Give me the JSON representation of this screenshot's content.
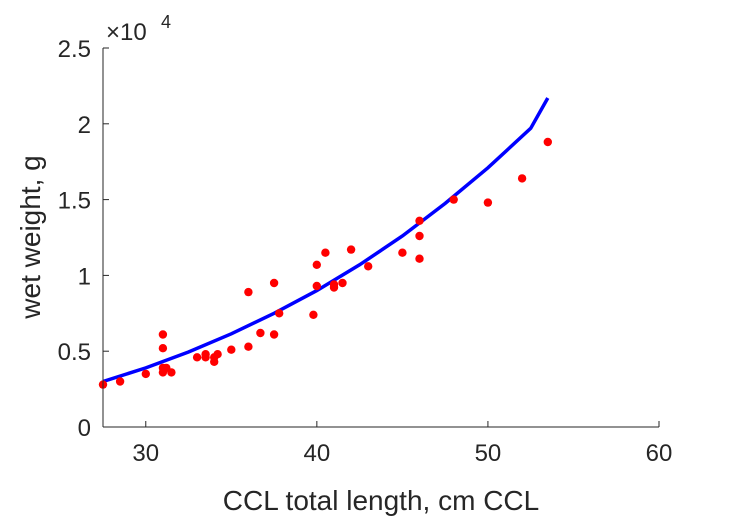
{
  "chart_data": {
    "type": "scatter",
    "title": "",
    "xlabel": "CCL total length, cm CCL",
    "ylabel": "wet weight, g",
    "xlim": [
      27.5,
      60
    ],
    "ylim": [
      0,
      25000
    ],
    "xticks": [
      30,
      40,
      50,
      60
    ],
    "xtick_labels": [
      "30",
      "40",
      "50",
      "60"
    ],
    "yticks": [
      0,
      5000,
      10000,
      15000,
      20000,
      25000
    ],
    "ytick_labels": [
      "0",
      "0.5",
      "1",
      "1.5",
      "2",
      "2.5"
    ],
    "y_exponent_label": "×10",
    "y_exponent_power": "4",
    "grid": false,
    "colors": {
      "points": "#ff0000",
      "fit": "#0000ff",
      "axes": "#262626"
    },
    "series": [
      {
        "kind": "points",
        "x": [
          27.5,
          28.5,
          30.0,
          31.0,
          31.0,
          31.0,
          31.0,
          31.2,
          31.5,
          33.0,
          33.5,
          33.5,
          34.0,
          34.0,
          34.2,
          35.0,
          36.0,
          36.0,
          36.7,
          37.5,
          37.5,
          37.8,
          39.8,
          40.0,
          40.0,
          40.5,
          41.0,
          41.0,
          41.5,
          42.0,
          43.0,
          45.0,
          46.0,
          46.0,
          46.0,
          48.0,
          50.0,
          52.0,
          53.5
        ],
        "y": [
          2800,
          3000,
          3500,
          6100,
          5200,
          3900,
          3600,
          3900,
          3600,
          4600,
          4800,
          4600,
          4300,
          4600,
          4800,
          5100,
          8900,
          5300,
          6200,
          9500,
          6100,
          7500,
          7400,
          10700,
          9300,
          11500,
          9400,
          9200,
          9500,
          11700,
          10600,
          11500,
          13600,
          12600,
          11100,
          15000,
          14800,
          16400,
          18800
        ]
      },
      {
        "kind": "fit",
        "x": [
          27.5,
          30,
          32.5,
          35,
          37.5,
          40,
          42.5,
          45,
          47.5,
          50,
          52.5,
          53.5
        ],
        "y": [
          3000,
          3900,
          4950,
          6150,
          7500,
          9000,
          10700,
          12600,
          14750,
          17100,
          19700,
          21700
        ]
      }
    ]
  }
}
